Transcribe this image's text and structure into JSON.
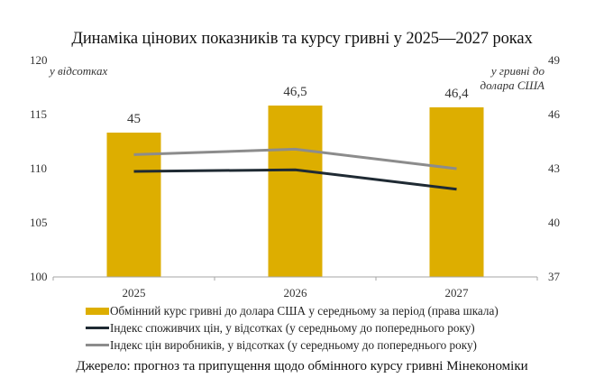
{
  "chart_data": {
    "type": "bar",
    "title": "Динаміка цінових показників та курсу гривні у 2025—2027 роках",
    "categories": [
      "2025",
      "2026",
      "2027"
    ],
    "left_axis": {
      "label": "у відсотках",
      "ylim": [
        100,
        120
      ],
      "ticks": [
        "100",
        "105",
        "110",
        "115",
        "120"
      ],
      "tick_values": [
        100,
        105,
        110,
        115,
        120
      ]
    },
    "right_axis": {
      "label_line1": "у гривні до",
      "label_line2": "долара США",
      "ylim": [
        37,
        49
      ],
      "ticks": [
        "37",
        "40",
        "43",
        "46",
        "49"
      ],
      "tick_values": [
        37,
        40,
        43,
        46,
        49
      ]
    },
    "series": [
      {
        "name": "Обмінний курс гривні до долара США у середньому за період (права шкала)",
        "type": "bar",
        "axis": "right",
        "color": "#DDAE00",
        "values": [
          45,
          46.5,
          46.4
        ],
        "data_labels": [
          "45",
          "46,5",
          "46,4"
        ]
      },
      {
        "name": "Індекс споживчих цін, у відсотках (у середньому до попереднього року)",
        "type": "line",
        "axis": "left",
        "color": "#1F2A33",
        "values": [
          109.75,
          109.9,
          108.1
        ]
      },
      {
        "name": "Індекс цін виробників, у відсотках (у середньому до попереднього року)",
        "type": "line",
        "axis": "left",
        "color": "#8C8C8C",
        "values": [
          111.3,
          111.8,
          110.0
        ]
      }
    ],
    "grid": false,
    "legend_position": "bottom"
  },
  "source_note": "Джерело: прогноз та припущення щодо обмінного курсу гривні Мінекономіки"
}
